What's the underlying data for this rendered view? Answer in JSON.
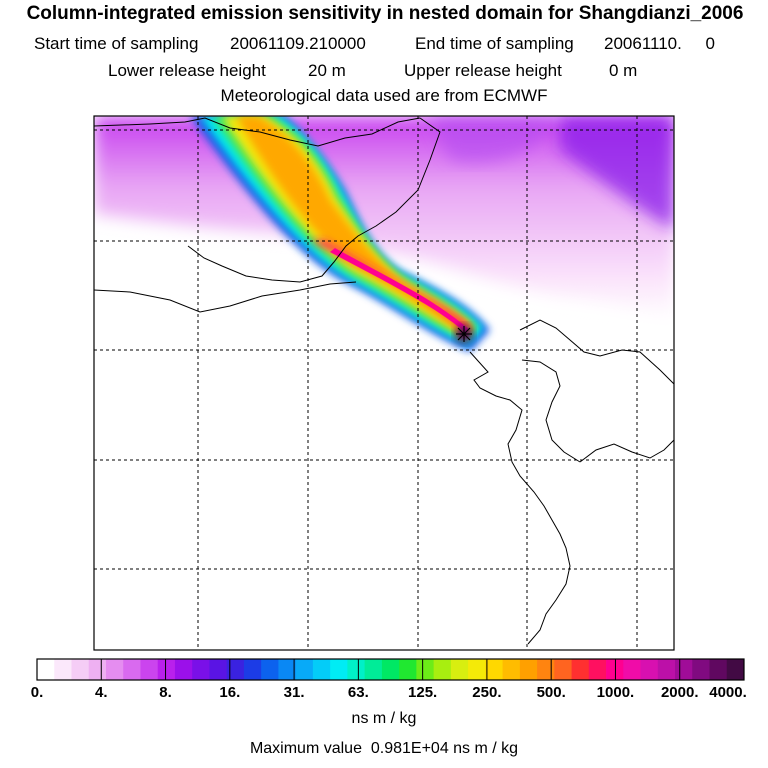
{
  "header": {
    "title": "Column-integrated emission sensitivity in nested domain for Shangdianzi_2006",
    "start_label": "Start time of sampling",
    "start_value": "20061109.210000",
    "end_label": "End time of sampling",
    "end_value": "20061110.     0",
    "lower_label": "Lower release height",
    "lower_value": "20 m",
    "upper_label": "Upper release height",
    "upper_value": "0 m",
    "met_line": "Meteorological data used are from ECMWF"
  },
  "colorbar": {
    "ticks": [
      "0.",
      "4.",
      "8.",
      "16.",
      "31.",
      "63.",
      "125.",
      "250.",
      "500.",
      "1000.",
      "2000.",
      "4000."
    ],
    "colors": [
      "#ffffff",
      "#fbe8fb",
      "#f5cdf6",
      "#eeb0f2",
      "#e58df0",
      "#d96aef",
      "#cb44ee",
      "#b920ec",
      "#9b10ea",
      "#7a10e8",
      "#5a14e4",
      "#3a22e0",
      "#1c3ce6",
      "#0c62ee",
      "#0a88f4",
      "#08aaf8",
      "#04ccf8",
      "#00ecf4",
      "#00f0c8",
      "#00ec98",
      "#00e864",
      "#20e830",
      "#6cec18",
      "#a8ee10",
      "#d8ee10",
      "#f4ea08",
      "#ffd800",
      "#ffbc00",
      "#ffa000",
      "#ff8410",
      "#ff6420",
      "#ff3030",
      "#ff1060",
      "#ff0090",
      "#f00ca8",
      "#d810b0",
      "#bc10a8",
      "#a00c98",
      "#800a80",
      "#600860",
      "#420a44"
    ],
    "unit": "ns m / kg",
    "max_label": "Maximum value",
    "max_value": "0.981E+04 ns m / kg"
  },
  "map": {
    "receptor_marker": "Shangdianzi receptor site",
    "grid_style": "dashed",
    "background_field": "low sensitivity (purple) along northern boundary",
    "plume": "high sensitivity band extending northwest from receptor"
  }
}
